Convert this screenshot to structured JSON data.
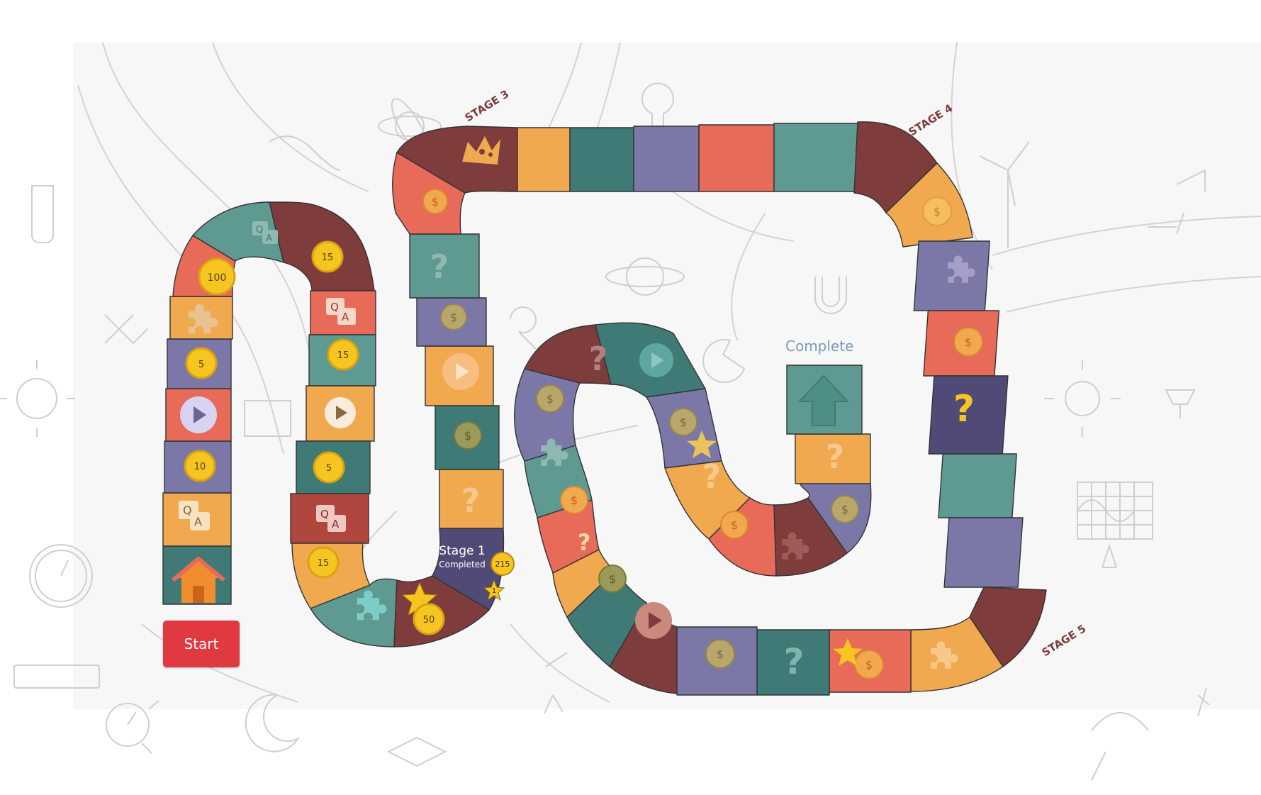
{
  "colors": {
    "background": "#f8f8f8",
    "sketch_lines": "#cfcfcf",
    "red": "#e86a58",
    "orange": "#f0a94e",
    "teal": "#5e9a91",
    "dark_teal": "#3f7a76",
    "purple": "#7b78a8",
    "dark_purple": "#4f4b76",
    "maroon": "#7e3c3c",
    "coin_gold": "#f7c522",
    "start_button": "#e0393f"
  },
  "stages": {
    "stage3": "STAGE 3",
    "stage4": "STAGE 4",
    "stage5": "STAGE 5"
  },
  "complete_label": "Complete",
  "stage1_status": {
    "title": "Stage 1",
    "subtitle": "Completed",
    "score_badge": "215",
    "star_badge": "1"
  },
  "coins": {
    "c100": "100",
    "c15_top": "15",
    "c5_left": "5",
    "c15_mid": "15",
    "c10": "10",
    "c5_mid": "5",
    "c15_low": "15",
    "c50": "50"
  },
  "start_button": {
    "label": "Start"
  },
  "icons": [
    "home-icon",
    "puzzle-icon",
    "play-icon",
    "qa-icon",
    "coin-icon",
    "question-icon",
    "crown-icon",
    "star-icon",
    "arrow-up-icon"
  ]
}
